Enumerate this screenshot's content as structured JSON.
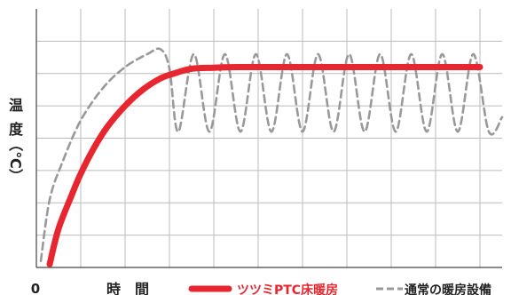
{
  "chart_data": {
    "type": "line",
    "title": "",
    "xlabel": "時　間",
    "ylabel": "温度（℃）",
    "ylabel_chars": [
      "温",
      "度",
      "（℃）"
    ],
    "x_origin_label": "0",
    "xlim": [
      0,
      10.5
    ],
    "ylim": [
      0,
      8
    ],
    "grid": true,
    "x_gridlines": [
      0,
      1,
      2,
      3,
      4,
      5,
      6,
      7,
      8,
      9,
      10
    ],
    "y_gridlines": [
      1,
      2,
      3,
      4,
      5,
      6,
      7
    ],
    "legend_position": "bottom",
    "series": [
      {
        "name": "ツツミPTC床暖房",
        "color": "#e8262f",
        "style": "solid",
        "x": [
          0.3,
          0.5,
          0.8,
          1.0,
          1.3,
          1.6,
          2.0,
          2.4,
          2.8,
          3.1,
          3.5,
          4.0,
          4.5,
          5.5,
          7.0,
          8.5,
          10.0
        ],
        "y": [
          0.1,
          1.2,
          2.25,
          2.9,
          3.7,
          4.35,
          5.0,
          5.5,
          5.85,
          6.0,
          6.15,
          6.18,
          6.2,
          6.2,
          6.2,
          6.2,
          6.2
        ]
      },
      {
        "name": "通常の暖房設備",
        "color": "#999999",
        "style": "dashed",
        "x": [
          0.1,
          0.3,
          0.6,
          1.0,
          1.5,
          2.0,
          2.5,
          2.8,
          3.0,
          3.2,
          3.55,
          3.9,
          4.25,
          4.6,
          4.95,
          5.3,
          5.65,
          6.0,
          6.35,
          6.7,
          7.05,
          7.4,
          7.75,
          8.1,
          8.45,
          8.8,
          9.15,
          9.5,
          9.85,
          10.2,
          10.5
        ],
        "y": [
          0.2,
          2.1,
          3.3,
          4.55,
          5.55,
          6.2,
          6.6,
          6.75,
          6.15,
          4.2,
          6.6,
          4.2,
          6.6,
          4.2,
          6.6,
          4.2,
          6.6,
          4.2,
          6.6,
          4.2,
          6.6,
          4.2,
          6.6,
          4.2,
          6.6,
          4.2,
          6.6,
          4.2,
          6.6,
          4.2,
          4.65
        ]
      }
    ]
  }
}
